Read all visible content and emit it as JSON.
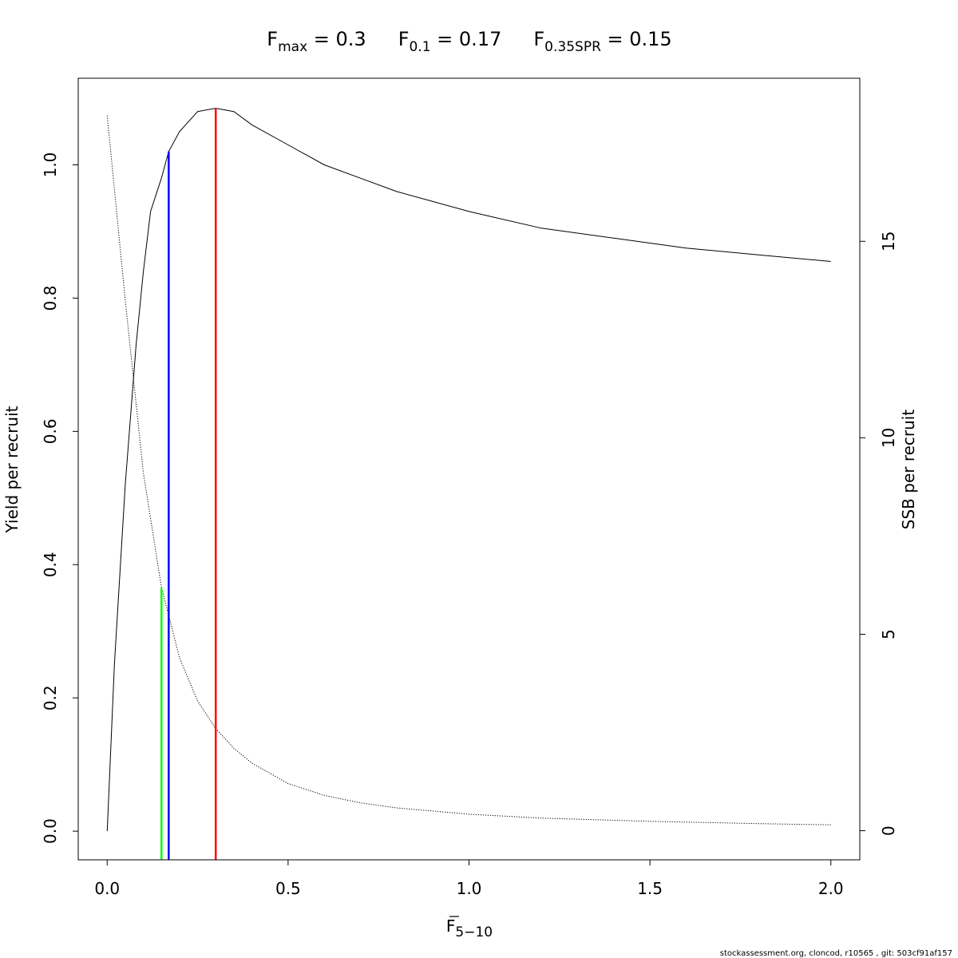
{
  "chart_data": {
    "type": "line",
    "title": {
      "fmax_main": "F",
      "fmax_sub": "max",
      "fmax_val": " = 0.3",
      "f01_main": "F",
      "f01_sub": "0.1",
      "f01_val": " = 0.17",
      "fspr_main": "F",
      "fspr_sub": "0.35SPR",
      "fspr_val": " = 0.15"
    },
    "xlabel_main": "F",
    "xlabel_sub": "5−10",
    "ylabel": "Yield per recruit",
    "y2label": "SSB per recruit",
    "xlim": [
      -0.08,
      2.08
    ],
    "ylim": [
      -0.043,
      1.13
    ],
    "y2lim": [
      -0.74,
      19.15
    ],
    "x_ticks": [
      "0.0",
      "0.5",
      "1.0",
      "1.5",
      "2.0"
    ],
    "y_ticks": [
      "0.0",
      "0.2",
      "0.4",
      "0.6",
      "0.8",
      "1.0"
    ],
    "y2_ticks": [
      "0",
      "5",
      "10",
      "15"
    ],
    "series": [
      {
        "axis": "left",
        "style": "solid",
        "color": "#000000",
        "x": [
          0,
          0.02,
          0.05,
          0.08,
          0.1,
          0.12,
          0.15,
          0.17,
          0.2,
          0.25,
          0.3,
          0.35,
          0.4,
          0.5,
          0.6,
          0.7,
          0.8,
          0.9,
          1.0,
          1.2,
          1.4,
          1.6,
          1.8,
          2.0
        ],
        "y": [
          0.0,
          0.25,
          0.52,
          0.73,
          0.84,
          0.93,
          0.98,
          1.02,
          1.05,
          1.08,
          1.085,
          1.08,
          1.06,
          1.03,
          1.0,
          0.98,
          0.96,
          0.945,
          0.93,
          0.905,
          0.89,
          0.875,
          0.865,
          0.855
        ]
      },
      {
        "axis": "right",
        "style": "dotted",
        "color": "#000000",
        "x": [
          0,
          0.05,
          0.1,
          0.15,
          0.2,
          0.25,
          0.3,
          0.35,
          0.4,
          0.5,
          0.6,
          0.7,
          0.8,
          1.0,
          1.2,
          1.5,
          1.8,
          2.0
        ],
        "y": [
          18.2,
          13.5,
          9.1,
          6.2,
          4.4,
          3.3,
          2.6,
          2.1,
          1.72,
          1.2,
          0.9,
          0.71,
          0.58,
          0.42,
          0.32,
          0.24,
          0.18,
          0.15
        ]
      }
    ],
    "reference_lines": [
      {
        "name": "F0.35SPR",
        "x": 0.15,
        "y_top": 0.365,
        "color": "#00ff00"
      },
      {
        "name": "F0.1",
        "x": 0.17,
        "y_top": 1.02,
        "color": "#0000ff"
      },
      {
        "name": "Fmax",
        "x": 0.3,
        "y_top": 1.085,
        "color": "#ff0000"
      }
    ]
  },
  "footer": "stockassessment.org, cloncod, r10565 , git: 503cf91af157"
}
